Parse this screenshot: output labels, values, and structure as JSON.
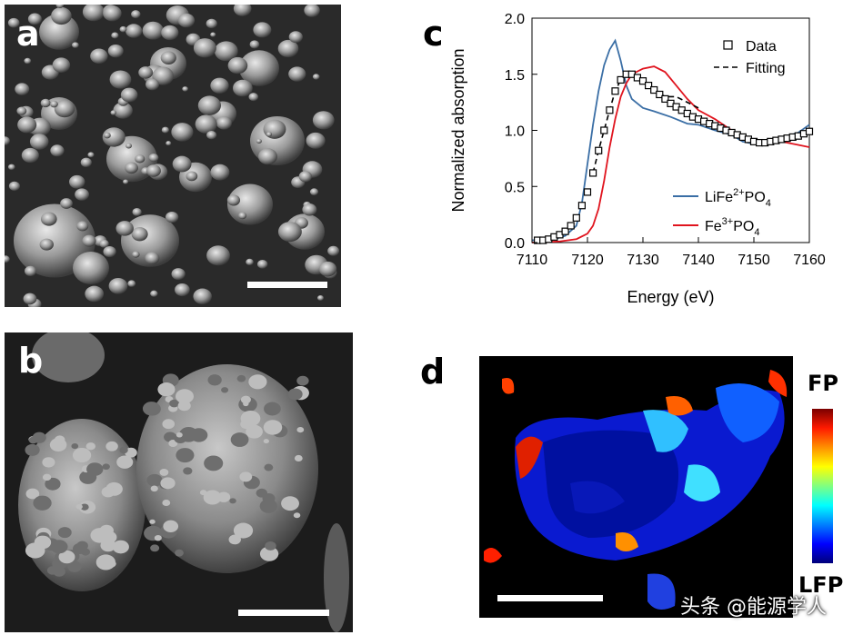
{
  "panels": {
    "a": {
      "letter": "a"
    },
    "b": {
      "letter": "b"
    },
    "c": {
      "letter": "c"
    },
    "d": {
      "letter": "d"
    }
  },
  "chart_data": {
    "type": "line",
    "xlabel": "Energy (eV)",
    "ylabel": "Normalized absorption",
    "xlim": [
      7110,
      7160
    ],
    "ylim": [
      0,
      2.0
    ],
    "xticks": [
      7110,
      7120,
      7130,
      7140,
      7150,
      7160
    ],
    "yticks": [
      0.0,
      0.5,
      1.0,
      1.5,
      2.0
    ],
    "ytick_labels": [
      "0.0",
      "0.5",
      "1.0",
      "1.5",
      "2.0"
    ],
    "legend_top": [
      {
        "label": "Data",
        "style": "square-marker"
      },
      {
        "label": "Fitting",
        "style": "dashed"
      }
    ],
    "series": [
      {
        "name": "LiFe²⁺PO₄",
        "label_base": "LiFe",
        "label_sup": "2+",
        "label_mid": "PO",
        "label_sub": "4",
        "color": "#3a6ea5",
        "x": [
          7110,
          7114,
          7116,
          7118,
          7119,
          7120,
          7121,
          7122,
          7123,
          7124,
          7125,
          7126,
          7127,
          7128,
          7130,
          7132,
          7135,
          7138,
          7140,
          7143,
          7146,
          7148,
          7150,
          7152,
          7155,
          7158,
          7160
        ],
        "y": [
          0.02,
          0.03,
          0.06,
          0.15,
          0.35,
          0.7,
          1.05,
          1.35,
          1.58,
          1.72,
          1.8,
          1.62,
          1.4,
          1.28,
          1.2,
          1.17,
          1.12,
          1.06,
          1.05,
          1.0,
          0.96,
          0.9,
          0.88,
          0.9,
          0.93,
          0.98,
          1.05
        ]
      },
      {
        "name": "Fe³⁺PO₄",
        "label_base": "Fe",
        "label_sup": "3+",
        "label_mid": "PO",
        "label_sub": "4",
        "color": "#e0141e",
        "x": [
          7110,
          7115,
          7118,
          7120,
          7121,
          7122,
          7123,
          7124,
          7125,
          7126,
          7127,
          7128,
          7130,
          7132,
          7134,
          7136,
          7138,
          7140,
          7143,
          7146,
          7148,
          7150,
          7152,
          7155,
          7158,
          7160
        ],
        "y": [
          0.0,
          0.01,
          0.03,
          0.08,
          0.15,
          0.3,
          0.55,
          0.85,
          1.1,
          1.3,
          1.42,
          1.5,
          1.55,
          1.57,
          1.52,
          1.4,
          1.28,
          1.18,
          1.1,
          1.0,
          0.95,
          0.9,
          0.88,
          0.9,
          0.87,
          0.85
        ]
      },
      {
        "name": "Data",
        "color": "#000000",
        "x": [
          7111,
          7112,
          7113,
          7114,
          7115,
          7116,
          7117,
          7118,
          7119,
          7120,
          7121,
          7122,
          7123,
          7124,
          7125,
          7126,
          7127,
          7128,
          7129,
          7130,
          7131,
          7132,
          7133,
          7134,
          7135,
          7136,
          7137,
          7138,
          7139,
          7140,
          7141,
          7142,
          7143,
          7144,
          7145,
          7146,
          7147,
          7148,
          7149,
          7150,
          7151,
          7152,
          7153,
          7154,
          7155,
          7156,
          7157,
          7158,
          7159,
          7160
        ],
        "y": [
          0.02,
          0.02,
          0.03,
          0.05,
          0.07,
          0.1,
          0.15,
          0.22,
          0.33,
          0.45,
          0.62,
          0.82,
          1.0,
          1.18,
          1.35,
          1.45,
          1.5,
          1.5,
          1.47,
          1.44,
          1.4,
          1.36,
          1.32,
          1.28,
          1.24,
          1.21,
          1.18,
          1.15,
          1.12,
          1.1,
          1.08,
          1.06,
          1.04,
          1.02,
          1.0,
          0.98,
          0.96,
          0.94,
          0.92,
          0.9,
          0.89,
          0.89,
          0.9,
          0.91,
          0.92,
          0.93,
          0.94,
          0.95,
          0.97,
          0.99
        ]
      },
      {
        "name": "Fitting",
        "color": "#000000",
        "x": [
          7121,
          7122,
          7123,
          7124,
          7125,
          7126,
          7127,
          7128,
          7130,
          7132,
          7134,
          7136,
          7138,
          7140
        ],
        "y": [
          0.62,
          0.82,
          1.0,
          1.18,
          1.35,
          1.45,
          1.5,
          1.5,
          1.44,
          1.36,
          1.3,
          1.3,
          1.25,
          1.2
        ]
      }
    ]
  },
  "colorbar": {
    "top_label": "FP",
    "bottom_label": "LFP"
  },
  "watermark": {
    "text": "头条 @能源学人"
  }
}
